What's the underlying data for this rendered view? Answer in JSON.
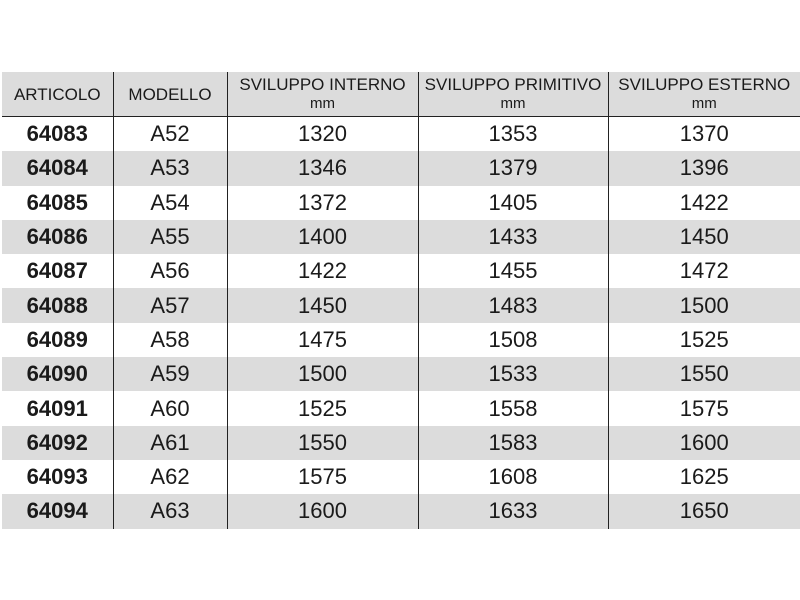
{
  "headers": [
    {
      "label": "ARTICOLO",
      "unit": ""
    },
    {
      "label": "MODELLO",
      "unit": ""
    },
    {
      "label": "SVILUPPO INTERNO",
      "unit": "mm"
    },
    {
      "label": "SVILUPPO PRIMITIVO",
      "unit": "mm"
    },
    {
      "label": "SVILUPPO ESTERNO",
      "unit": "mm"
    }
  ],
  "rows": [
    [
      "64083",
      "A52",
      "1320",
      "1353",
      "1370"
    ],
    [
      "64084",
      "A53",
      "1346",
      "1379",
      "1396"
    ],
    [
      "64085",
      "A54",
      "1372",
      "1405",
      "1422"
    ],
    [
      "64086",
      "A55",
      "1400",
      "1433",
      "1450"
    ],
    [
      "64087",
      "A56",
      "1422",
      "1455",
      "1472"
    ],
    [
      "64088",
      "A57",
      "1450",
      "1483",
      "1500"
    ],
    [
      "64089",
      "A58",
      "1475",
      "1508",
      "1525"
    ],
    [
      "64090",
      "A59",
      "1500",
      "1533",
      "1550"
    ],
    [
      "64091",
      "A60",
      "1525",
      "1558",
      "1575"
    ],
    [
      "64092",
      "A61",
      "1550",
      "1583",
      "1600"
    ],
    [
      "64093",
      "A62",
      "1575",
      "1608",
      "1625"
    ],
    [
      "64094",
      "A63",
      "1600",
      "1633",
      "1650"
    ]
  ],
  "colors": {
    "stripe": "#dcdcdc",
    "rule": "#222222"
  }
}
